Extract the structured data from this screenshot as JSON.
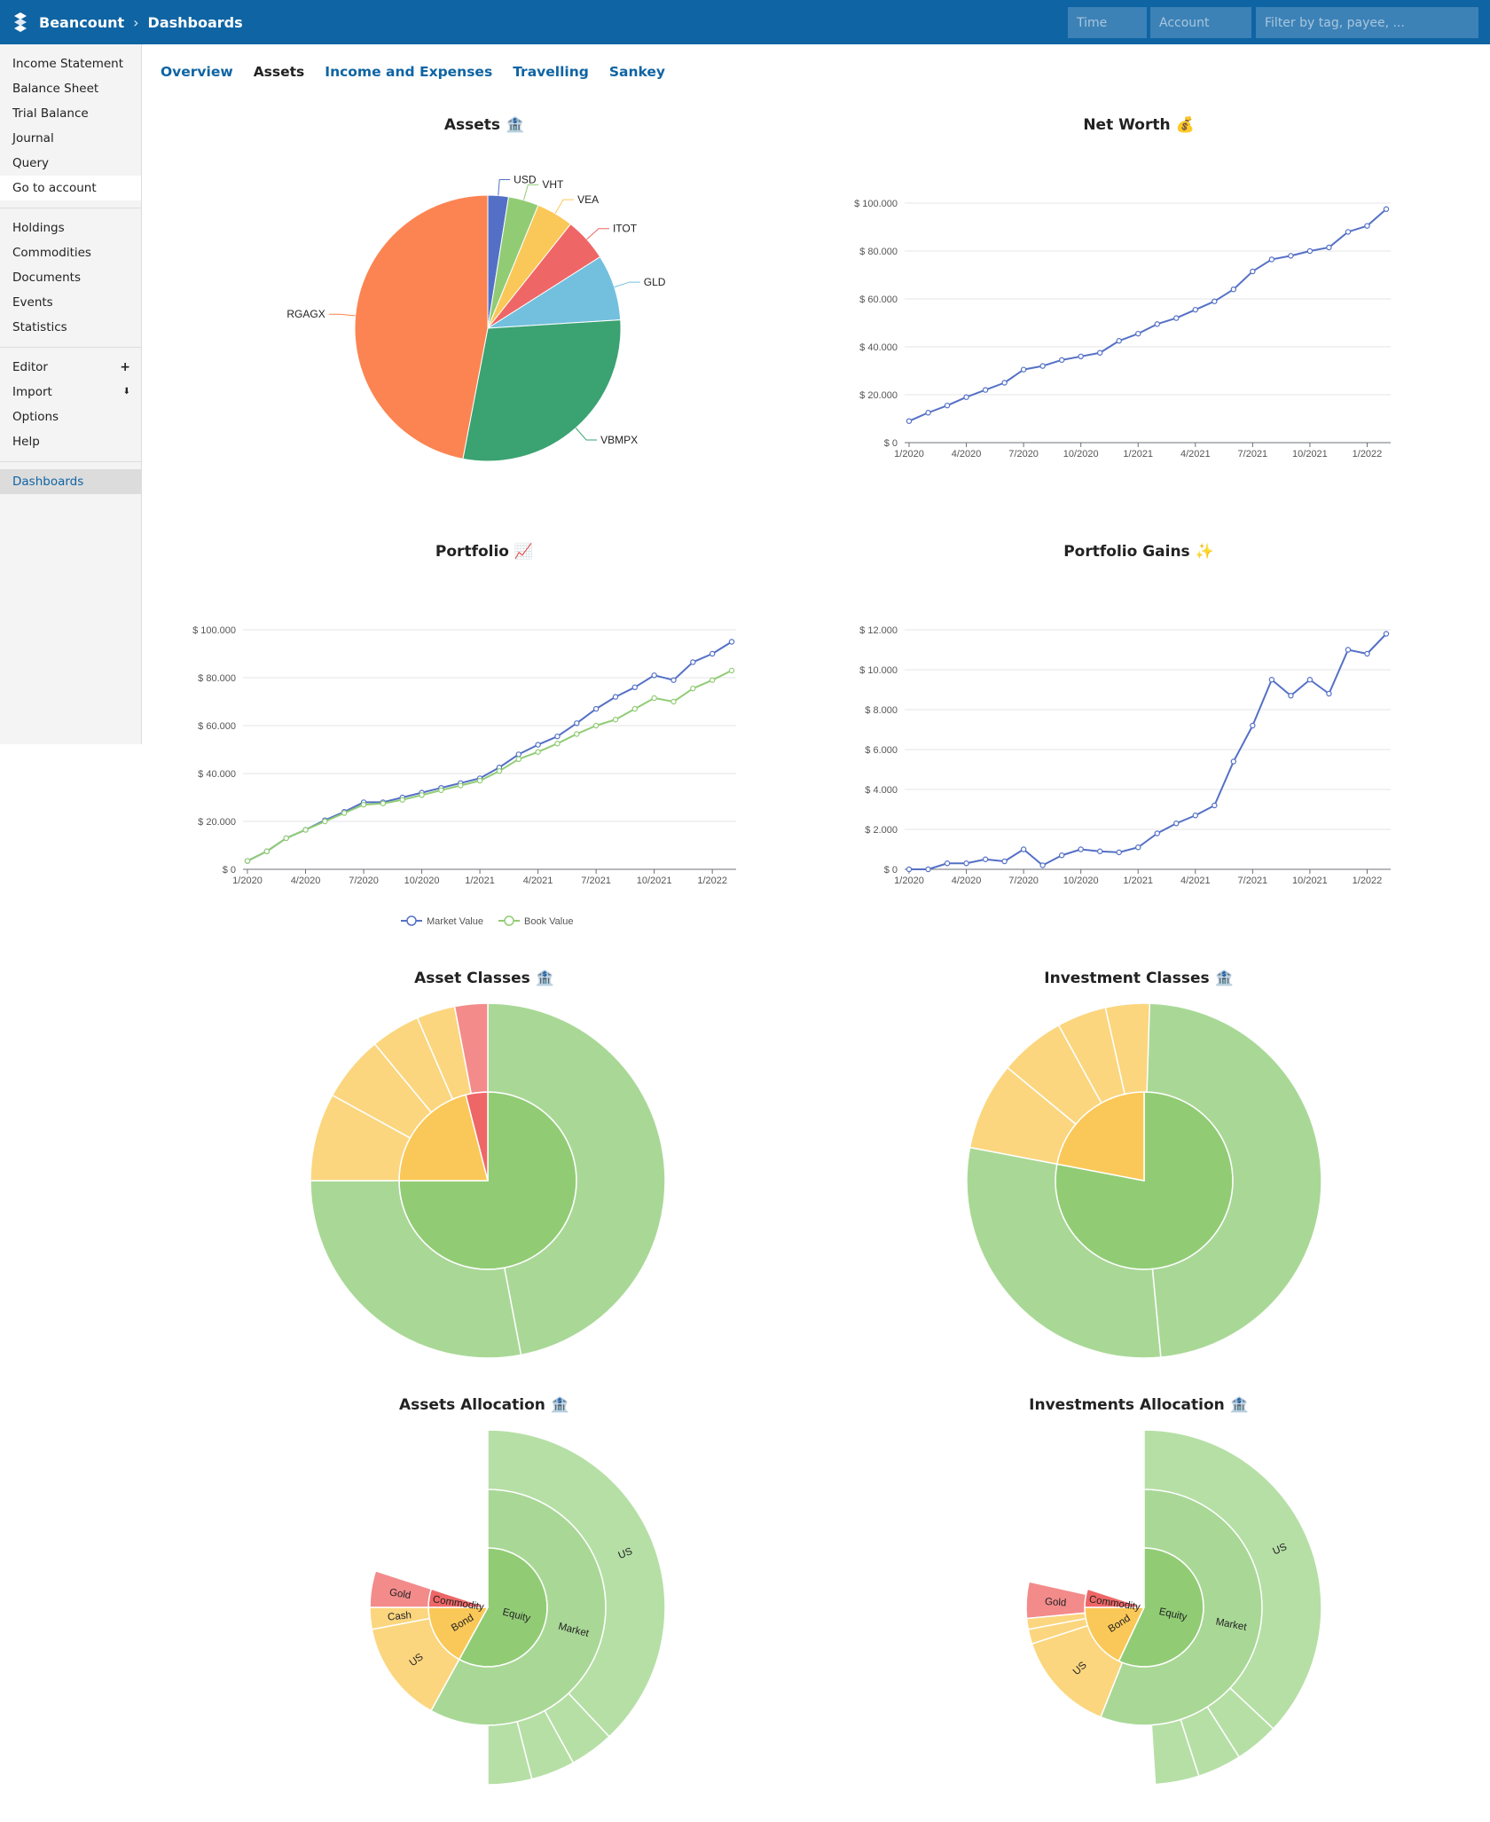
{
  "header": {
    "app_name": "Beancount",
    "separator": "›",
    "page": "Dashboards",
    "time_placeholder": "Time",
    "account_placeholder": "Account",
    "filter_placeholder": "Filter by tag, payee, ..."
  },
  "sidebar": {
    "group1": [
      "Income Statement",
      "Balance Sheet",
      "Trial Balance",
      "Journal",
      "Query",
      "Go to account"
    ],
    "group2": [
      "Holdings",
      "Commodities",
      "Documents",
      "Events",
      "Statistics"
    ],
    "group3": [
      "Editor",
      "Import",
      "Options",
      "Help"
    ],
    "editor_icon": "+",
    "import_icon": "⬇",
    "group4": [
      "Dashboards"
    ]
  },
  "tabs": [
    "Overview",
    "Assets",
    "Income and Expenses",
    "Travelling",
    "Sankey"
  ],
  "colors": {
    "blue": "#5470c6",
    "green": "#91cc75",
    "yellow": "#fac858",
    "red": "#ee6666",
    "cyan": "#73c0de",
    "teal": "#3ba272",
    "orange": "#fc8452"
  },
  "chart_data": [
    {
      "type": "pie",
      "title": "Assets 🏦",
      "categories": [
        "USD",
        "VHT",
        "VEA",
        "ITOT",
        "GLD",
        "VBMPX",
        "RGAGX"
      ],
      "values": [
        2.5,
        3.7,
        4.5,
        5.3,
        8.0,
        29.0,
        47.0
      ]
    },
    {
      "type": "line",
      "title": "Net Worth 💰",
      "x": [
        "1/2020",
        "2/2020",
        "3/2020",
        "4/2020",
        "5/2020",
        "6/2020",
        "7/2020",
        "8/2020",
        "9/2020",
        "10/2020",
        "11/2020",
        "12/2020",
        "1/2021",
        "2/2021",
        "3/2021",
        "4/2021",
        "5/2021",
        "6/2021",
        "7/2021",
        "8/2021",
        "9/2021",
        "10/2021",
        "11/2021",
        "12/2021",
        "1/2022",
        "2/2022"
      ],
      "series": [
        {
          "name": "Net Worth",
          "values": [
            9000,
            12500,
            15500,
            19000,
            22000,
            25000,
            30500,
            32000,
            34500,
            36000,
            37500,
            42500,
            45500,
            49500,
            52000,
            55500,
            59000,
            64000,
            71500,
            76500,
            78000,
            80000,
            81500,
            88000,
            90500,
            97500
          ]
        }
      ],
      "xticks": [
        "1/2020",
        "4/2020",
        "7/2020",
        "10/2020",
        "1/2021",
        "4/2021",
        "7/2021",
        "10/2021",
        "1/2022"
      ],
      "yticks": [
        "$ 0",
        "$ 20.000",
        "$ 40.000",
        "$ 60.000",
        "$ 80.000",
        "$ 100.000"
      ],
      "ylim": [
        0,
        100000
      ]
    },
    {
      "type": "line",
      "title": "Portfolio 📈",
      "x": [
        "1/2020",
        "2/2020",
        "3/2020",
        "4/2020",
        "5/2020",
        "6/2020",
        "7/2020",
        "8/2020",
        "9/2020",
        "10/2020",
        "11/2020",
        "12/2020",
        "1/2021",
        "2/2021",
        "3/2021",
        "4/2021",
        "5/2021",
        "6/2021",
        "7/2021",
        "8/2021",
        "9/2021",
        "10/2021",
        "11/2021",
        "12/2021",
        "1/2022",
        "2/2022"
      ],
      "series": [
        {
          "name": "Market Value",
          "values": [
            3500,
            7500,
            13000,
            16500,
            20500,
            24000,
            28000,
            28000,
            30000,
            32000,
            34000,
            36000,
            38000,
            42500,
            48000,
            52000,
            55500,
            61000,
            67000,
            72000,
            76000,
            81000,
            79000,
            86500,
            90000,
            95000
          ]
        },
        {
          "name": "Book Value",
          "values": [
            3500,
            7500,
            13000,
            16500,
            20000,
            23500,
            27000,
            27500,
            29000,
            31000,
            33000,
            35000,
            37000,
            41000,
            46000,
            49000,
            52500,
            56500,
            60000,
            62500,
            67000,
            71500,
            70000,
            75500,
            79000,
            83000
          ]
        }
      ],
      "xticks": [
        "1/2020",
        "4/2020",
        "7/2020",
        "10/2020",
        "1/2021",
        "4/2021",
        "7/2021",
        "10/2021",
        "1/2022"
      ],
      "yticks": [
        "$ 0",
        "$ 20.000",
        "$ 40.000",
        "$ 60.000",
        "$ 80.000",
        "$ 100.000"
      ],
      "ylim": [
        0,
        100000
      ],
      "legend": [
        "Market Value",
        "Book Value"
      ]
    },
    {
      "type": "line",
      "title": "Portfolio Gains ✨",
      "x": [
        "1/2020",
        "2/2020",
        "3/2020",
        "4/2020",
        "5/2020",
        "6/2020",
        "7/2020",
        "8/2020",
        "9/2020",
        "10/2020",
        "11/2020",
        "12/2020",
        "1/2021",
        "2/2021",
        "3/2021",
        "4/2021",
        "5/2021",
        "6/2021",
        "7/2021",
        "8/2021",
        "9/2021",
        "10/2021",
        "11/2021",
        "12/2021",
        "1/2022",
        "2/2022"
      ],
      "series": [
        {
          "name": "Gains",
          "values": [
            0,
            0,
            300,
            300,
            500,
            400,
            1000,
            200,
            700,
            1000,
            900,
            850,
            1100,
            1800,
            2300,
            2700,
            3200,
            5400,
            7200,
            9500,
            8700,
            9500,
            8800,
            11000,
            10800,
            11800
          ]
        }
      ],
      "xticks": [
        "1/2020",
        "4/2020",
        "7/2020",
        "10/2020",
        "1/2021",
        "4/2021",
        "7/2021",
        "10/2021",
        "1/2022"
      ],
      "yticks": [
        "$ 0",
        "$ 2.000",
        "$ 4.000",
        "$ 6.000",
        "$ 8.000",
        "$ 10.000",
        "$ 12.000"
      ],
      "ylim": [
        0,
        12000
      ]
    },
    {
      "type": "sunburst",
      "title": "Asset Classes 🏦",
      "inner": [
        {
          "value": 75,
          "color": "#91cc75"
        },
        {
          "value": 21,
          "color": "#fac858"
        },
        {
          "value": 4,
          "color": "#ee6666"
        }
      ],
      "outer": [
        {
          "value": 47,
          "color": "#a9d896"
        },
        {
          "value": 28,
          "color": "#a9d896"
        },
        {
          "value": 8,
          "color": "#fbd67f"
        },
        {
          "value": 6,
          "color": "#fbd67f"
        },
        {
          "value": 4.5,
          "color": "#fbd67f"
        },
        {
          "value": 3.5,
          "color": "#fbd67f"
        },
        {
          "value": 3,
          "color": "#f38b8b"
        }
      ]
    },
    {
      "type": "sunburst",
      "title": "Investment Classes 🏦",
      "inner": [
        {
          "value": 78,
          "color": "#91cc75"
        },
        {
          "value": 22,
          "color": "#fac858"
        }
      ],
      "outer": [
        {
          "value": 48.5,
          "color": "#a9d896"
        },
        {
          "value": 29.5,
          "color": "#a9d896"
        },
        {
          "value": 8,
          "color": "#fbd67f"
        },
        {
          "value": 6,
          "color": "#fbd67f"
        },
        {
          "value": 4.5,
          "color": "#fbd67f"
        },
        {
          "value": 4,
          "color": "#fbd67f"
        }
      ]
    },
    {
      "type": "sunburst",
      "title": "Assets Allocation 🏦",
      "inner": [
        {
          "label": "Equity",
          "value": 58,
          "color": "#91cc75"
        },
        {
          "label": "Bond",
          "value": 17,
          "color": "#fac858"
        },
        {
          "label": "Commodity",
          "value": 5,
          "color": "#ee6666"
        }
      ],
      "middle": [
        {
          "label": "Market",
          "value": 58,
          "color": "#a9d896"
        },
        {
          "label": "US",
          "value": 14,
          "color": "#fbd67f"
        },
        {
          "label": "Cash",
          "value": 3,
          "color": "#fbd67f"
        },
        {
          "label": "Gold",
          "value": 5,
          "color": "#f38b8b"
        }
      ],
      "outer": [
        {
          "label": "US",
          "value": 38,
          "color": "#b6dfa6"
        },
        {
          "value": 4,
          "color": "#b6dfa6"
        },
        {
          "value": 4,
          "color": "#b6dfa6"
        },
        {
          "value": 4,
          "color": "#b6dfa6"
        }
      ]
    },
    {
      "type": "sunburst",
      "title": "Investments Allocation 🏦",
      "inner": [
        {
          "label": "Equity",
          "value": 57,
          "color": "#91cc75"
        },
        {
          "label": "Bond",
          "value": 18,
          "color": "#fac858"
        },
        {
          "label": "Commodity",
          "value": 5,
          "color": "#ee6666"
        }
      ],
      "middle": [
        {
          "label": "Market",
          "value": 56,
          "color": "#a9d896"
        },
        {
          "label": "US",
          "value": 14,
          "color": "#fbd67f"
        },
        {
          "value": 2,
          "color": "#fbd67f"
        },
        {
          "value": 1.5,
          "color": "#fbd67f"
        },
        {
          "label": "Gold",
          "value": 5,
          "color": "#f38b8b"
        }
      ],
      "outer": [
        {
          "label": "US",
          "value": 37,
          "color": "#b6dfa6"
        },
        {
          "value": 4,
          "color": "#b6dfa6"
        },
        {
          "value": 4,
          "color": "#b6dfa6"
        },
        {
          "value": 4,
          "color": "#b6dfa6"
        }
      ]
    }
  ]
}
